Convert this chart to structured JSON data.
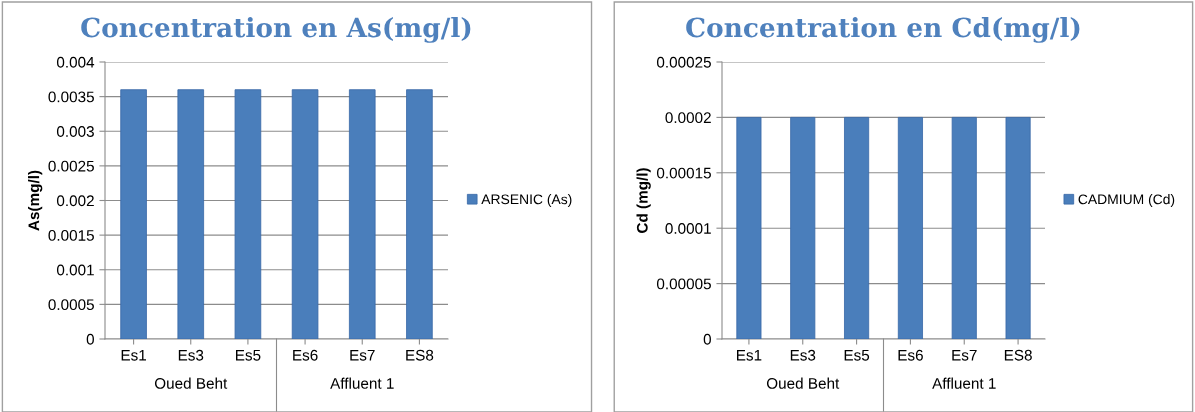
{
  "chart_data": [
    {
      "type": "bar",
      "title": "Concentration en As(mg/l)",
      "ylabel": "As(mg/l)",
      "categories": [
        "Es1",
        "Es3",
        "Es5",
        "Es6",
        "Es7",
        "ES8"
      ],
      "series": [
        {
          "name": "ARSENIC (As)",
          "color": "#4a7ebb",
          "values": [
            0.0036,
            0.0036,
            0.0036,
            0.0036,
            0.0036,
            0.0036
          ]
        }
      ],
      "ylim": [
        0,
        0.004
      ],
      "yticks": [
        0,
        0.0005,
        0.001,
        0.0015,
        0.002,
        0.0025,
        0.003,
        0.0035,
        0.004
      ],
      "grid": "y",
      "legend": "right",
      "annotations": [
        "Oued Beht",
        "Affluent 1"
      ]
    },
    {
      "type": "bar",
      "title": "Concentration en Cd(mg/l)",
      "ylabel": "Cd (mg/l)",
      "categories": [
        "Es1",
        "Es3",
        "Es5",
        "Es6",
        "Es7",
        "ES8"
      ],
      "series": [
        {
          "name": "CADMIUM (Cd)",
          "color": "#4a7ebb",
          "values": [
            0.0002,
            0.0002,
            0.0002,
            0.0002,
            0.0002,
            0.0002
          ]
        }
      ],
      "ylim": [
        0,
        0.00025
      ],
      "yticks": [
        0,
        {
          "value": 5e-05,
          "label": "0.00005"
        },
        0.0001,
        0.00015,
        0.0002,
        0.00025
      ],
      "grid": "y",
      "legend": "right",
      "annotations": [
        "Oued Beht",
        "Affluent 1"
      ]
    }
  ]
}
